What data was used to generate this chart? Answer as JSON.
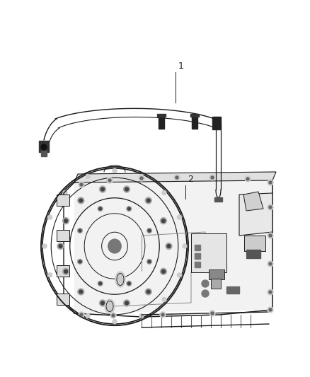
{
  "background_color": "#ffffff",
  "fig_width": 4.38,
  "fig_height": 5.33,
  "dpi": 100,
  "label_1": "1",
  "label_2": "2",
  "label_fontsize": 9,
  "line_color": "#1a1a1a",
  "gray_light": "#cccccc",
  "gray_mid": "#999999",
  "gray_dark": "#555555",
  "gray_fill": "#e8e8e8"
}
